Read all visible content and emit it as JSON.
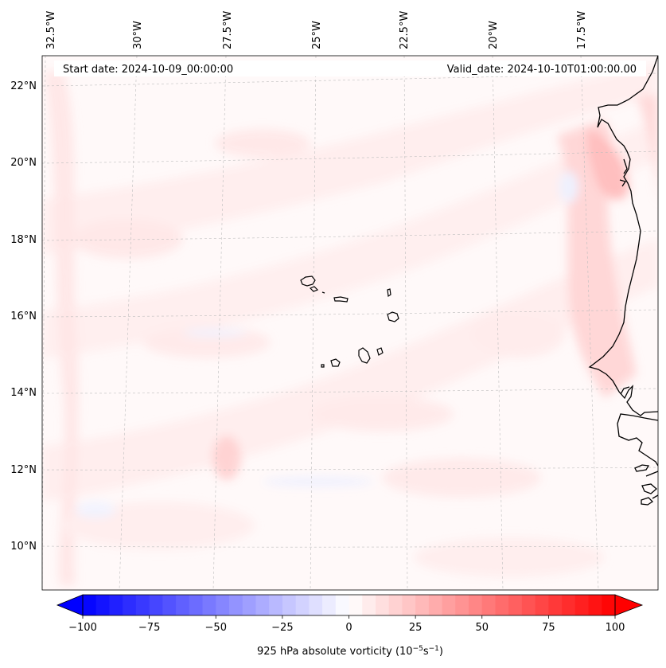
{
  "map": {
    "start_date_label": "Start date: 2024-10-09_00:00:00",
    "valid_date_label": "Valid_date: 2024-10-10T01:00:00.00",
    "lon_ticks": [
      "32.5°W",
      "30°W",
      "27.5°W",
      "25°W",
      "22.5°W",
      "20°W",
      "17.5°W"
    ],
    "lat_ticks": [
      "22°N",
      "20°N",
      "18°N",
      "16°N",
      "14°N",
      "12°N",
      "10°N"
    ],
    "field": "925 hPa absolute vorticity",
    "features": [
      "Cabo Verde islands",
      "West African coastline"
    ]
  },
  "colorbar": {
    "label_prefix": "925 hPa absolute vorticity (10",
    "label_exp1": "−5",
    "label_mid": "s",
    "label_exp2": "−1",
    "label_suffix": ")",
    "tick_labels": [
      "−100",
      "−75",
      "−50",
      "−25",
      "0",
      "25",
      "50",
      "75",
      "100"
    ],
    "vmin": -100,
    "vmax": 100,
    "levels": 40,
    "low_color": "#0000ff",
    "mid_color": "#ffffff",
    "high_color": "#ff0000"
  },
  "colors": {
    "background": "#fff9f9",
    "light_pink": "#ffecec",
    "pink": "#ffdcdc",
    "strong_pink": "#ffc4c4",
    "light_blue": "#f0f3ff"
  }
}
